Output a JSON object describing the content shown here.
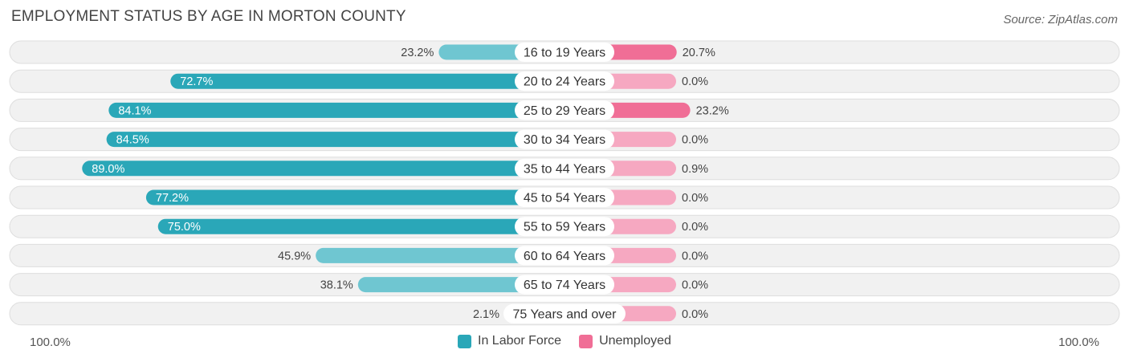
{
  "header": {
    "title": "EMPLOYMENT STATUS BY AGE IN MORTON COUNTY",
    "source": "Source: ZipAtlas.com"
  },
  "colors": {
    "labor_strong": "#2aa7b8",
    "labor_light": "#6fc6d1",
    "unemp_strong": "#f06e96",
    "unemp_light": "#f6a8c1",
    "row_bg": "#f1f1f1",
    "row_border": "#dedede"
  },
  "legend": {
    "labor_label": "In Labor Force",
    "unemp_label": "Unemployed"
  },
  "axis": {
    "left_label": "100.0%",
    "right_label": "100.0%"
  },
  "chart_data": {
    "type": "bar",
    "orientation": "horizontal-diverging",
    "title": "EMPLOYMENT STATUS BY AGE IN MORTON COUNTY",
    "categories": [
      "16 to 19 Years",
      "20 to 24 Years",
      "25 to 29 Years",
      "30 to 34 Years",
      "35 to 44 Years",
      "45 to 54 Years",
      "55 to 59 Years",
      "60 to 64 Years",
      "65 to 74 Years",
      "75 Years and over"
    ],
    "series": [
      {
        "name": "In Labor Force",
        "values": [
          23.2,
          72.7,
          84.1,
          84.5,
          89.0,
          77.2,
          75.0,
          45.9,
          38.1,
          2.1
        ],
        "labels": [
          "23.2%",
          "72.7%",
          "84.1%",
          "84.5%",
          "89.0%",
          "77.2%",
          "75.0%",
          "45.9%",
          "38.1%",
          "2.1%"
        ]
      },
      {
        "name": "Unemployed",
        "values": [
          20.7,
          0.0,
          23.2,
          0.0,
          0.9,
          0.0,
          0.0,
          0.0,
          0.0,
          0.0
        ],
        "labels": [
          "20.7%",
          "0.0%",
          "23.2%",
          "0.0%",
          "0.9%",
          "0.0%",
          "0.0%",
          "0.0%",
          "0.0%",
          "0.0%"
        ]
      }
    ],
    "xlim": [
      -100,
      100
    ],
    "legend_position": "bottom-center"
  }
}
